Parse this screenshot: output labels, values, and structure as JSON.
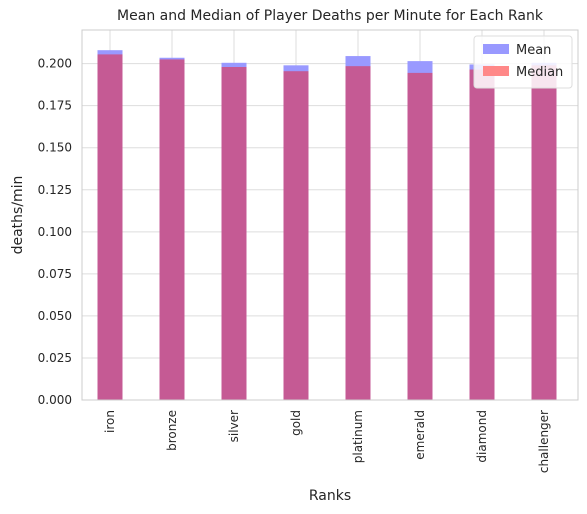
{
  "chart_data": {
    "type": "bar",
    "title": "Mean and Median of Player Deaths per Minute for Each Rank",
    "xlabel": "Ranks",
    "ylabel": "deaths/min",
    "categories": [
      "iron",
      "bronze",
      "silver",
      "gold",
      "platinum",
      "emerald",
      "diamond",
      "challenger"
    ],
    "series": [
      {
        "name": "Mean",
        "color": "#9999ff",
        "values": [
          0.208,
          0.2035,
          0.2005,
          0.199,
          0.2045,
          0.2015,
          0.1995,
          0.2005
        ]
      },
      {
        "name": "Median",
        "color": "#ff8888",
        "values": [
          0.2055,
          0.2025,
          0.198,
          0.1955,
          0.1985,
          0.1945,
          0.1965,
          0.199
        ]
      }
    ],
    "overlap_color": "#c55a94",
    "ylim": [
      0,
      0.22
    ],
    "yticks": [
      "0.000",
      "0.025",
      "0.050",
      "0.075",
      "0.100",
      "0.125",
      "0.150",
      "0.175",
      "0.200"
    ],
    "ytick_values": [
      0,
      0.025,
      0.05,
      0.075,
      0.1,
      0.125,
      0.15,
      0.175,
      0.2
    ],
    "grid": true,
    "legend_position": "top-right"
  }
}
